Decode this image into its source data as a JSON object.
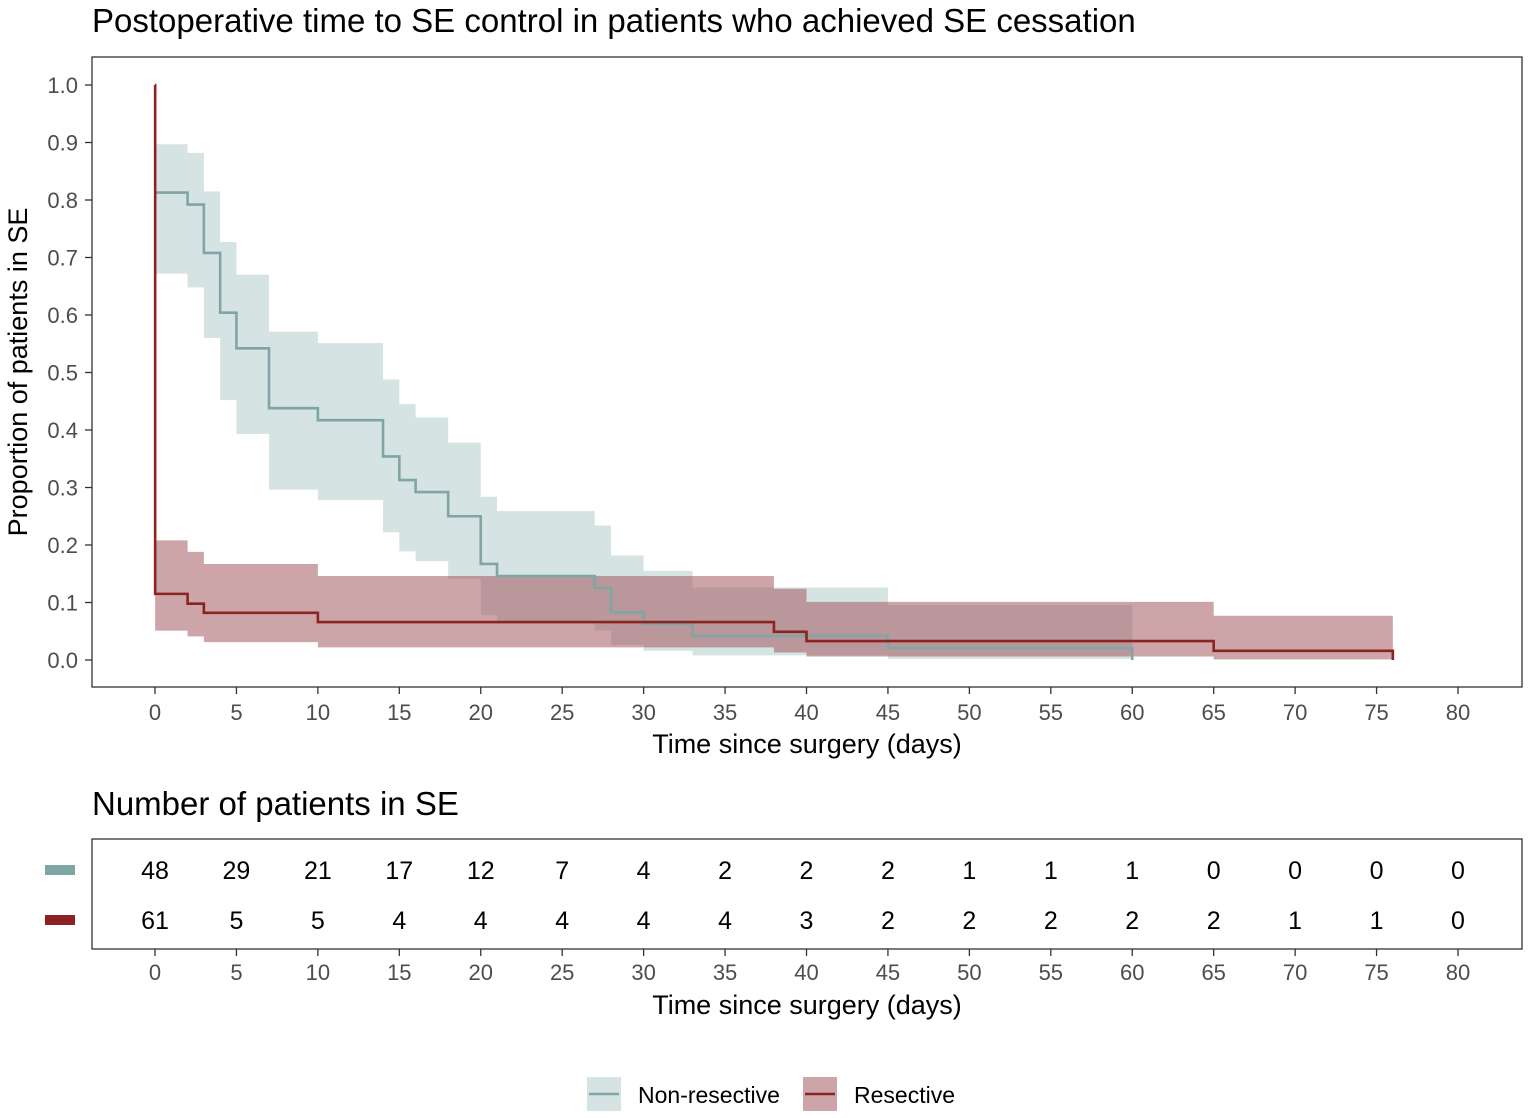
{
  "chart_data": {
    "type": "line",
    "subtype": "kaplan-meier-step",
    "title": "Postoperative time to SE control in patients who achieved SE cessation",
    "xlabel": "Time since surgery (days)",
    "ylabel": "Proportion of patients in SE",
    "xlim": [
      0,
      80
    ],
    "ylim": [
      0,
      1
    ],
    "x_ticks": [
      0,
      5,
      10,
      15,
      20,
      25,
      30,
      35,
      40,
      45,
      50,
      55,
      60,
      65,
      70,
      75,
      80
    ],
    "y_ticks": [
      0.0,
      0.1,
      0.2,
      0.3,
      0.4,
      0.5,
      0.6,
      0.7,
      0.8,
      0.9,
      1.0
    ],
    "y_tick_labels": [
      "0.0",
      "0.1",
      "0.2",
      "0.3",
      "0.4",
      "0.5",
      "0.6",
      "0.7",
      "0.8",
      "0.9",
      "1.0"
    ],
    "legend_position": "bottom",
    "series": [
      {
        "name": "Non-resective",
        "color": "#7fa5a5",
        "fill_color": "#b3cccc",
        "steps": [
          {
            "x": 0,
            "y": 0.813,
            "lower": 0.672,
            "upper": 0.897
          },
          {
            "x": 2,
            "y": 0.792,
            "lower": 0.648,
            "upper": 0.882
          },
          {
            "x": 3,
            "y": 0.708,
            "lower": 0.56,
            "upper": 0.815
          },
          {
            "x": 4,
            "y": 0.604,
            "lower": 0.452,
            "upper": 0.727
          },
          {
            "x": 5,
            "y": 0.542,
            "lower": 0.393,
            "upper": 0.67
          },
          {
            "x": 7,
            "y": 0.438,
            "lower": 0.296,
            "upper": 0.571
          },
          {
            "x": 10,
            "y": 0.417,
            "lower": 0.278,
            "upper": 0.551
          },
          {
            "x": 14,
            "y": 0.354,
            "lower": 0.222,
            "upper": 0.488
          },
          {
            "x": 15,
            "y": 0.313,
            "lower": 0.189,
            "upper": 0.445
          },
          {
            "x": 16,
            "y": 0.292,
            "lower": 0.172,
            "upper": 0.422
          },
          {
            "x": 18,
            "y": 0.25,
            "lower": 0.141,
            "upper": 0.378
          },
          {
            "x": 20,
            "y": 0.167,
            "lower": 0.078,
            "upper": 0.284
          },
          {
            "x": 21,
            "y": 0.146,
            "lower": 0.064,
            "upper": 0.259
          },
          {
            "x": 27,
            "y": 0.125,
            "lower": 0.051,
            "upper": 0.234
          },
          {
            "x": 28,
            "y": 0.083,
            "lower": 0.026,
            "upper": 0.182
          },
          {
            "x": 30,
            "y": 0.063,
            "lower": 0.016,
            "upper": 0.155
          },
          {
            "x": 33,
            "y": 0.042,
            "lower": 0.008,
            "upper": 0.126
          },
          {
            "x": 40,
            "y": 0.042,
            "lower": 0.008,
            "upper": 0.126
          },
          {
            "x": 45,
            "y": 0.021,
            "lower": 0.002,
            "upper": 0.096
          },
          {
            "x": 60,
            "y": 0.0,
            "lower": 0.0,
            "upper": 0.0
          }
        ]
      },
      {
        "name": "Resective",
        "color": "#8b2323",
        "fill_color": "#a45a60",
        "steps": [
          {
            "x": 0,
            "y": 1.0,
            "lower": 1.0,
            "upper": 1.0
          },
          {
            "x": 0.01,
            "y": 0.115,
            "lower": 0.051,
            "upper": 0.208
          },
          {
            "x": 2,
            "y": 0.098,
            "lower": 0.041,
            "upper": 0.188
          },
          {
            "x": 3,
            "y": 0.082,
            "lower": 0.031,
            "upper": 0.167
          },
          {
            "x": 10,
            "y": 0.066,
            "lower": 0.022,
            "upper": 0.146
          },
          {
            "x": 38,
            "y": 0.049,
            "lower": 0.013,
            "upper": 0.124
          },
          {
            "x": 40,
            "y": 0.033,
            "lower": 0.006,
            "upper": 0.101
          },
          {
            "x": 65,
            "y": 0.016,
            "lower": 0.001,
            "upper": 0.077
          },
          {
            "x": 76,
            "y": 0.0,
            "lower": 0.0,
            "upper": 0.0
          }
        ]
      }
    ],
    "risk_table": {
      "title": "Number of patients in SE",
      "xlabel": "Time since surgery (days)",
      "times": [
        0,
        5,
        10,
        15,
        20,
        25,
        30,
        35,
        40,
        45,
        50,
        55,
        60,
        65,
        70,
        75,
        80
      ],
      "rows": [
        {
          "name": "Non-resective",
          "color": "#7fa5a5",
          "values": [
            "48",
            "29",
            "21",
            "17",
            "12",
            "7",
            "4",
            "2",
            "2",
            "2",
            "1",
            "1",
            "1",
            "0",
            "0",
            "0",
            "0"
          ]
        },
        {
          "name": "Resective",
          "color": "#8b2323",
          "values": [
            "61",
            "5",
            "5",
            "4",
            "4",
            "4",
            "4",
            "4",
            "3",
            "2",
            "2",
            "2",
            "2",
            "2",
            "1",
            "1",
            "0"
          ]
        }
      ]
    }
  }
}
